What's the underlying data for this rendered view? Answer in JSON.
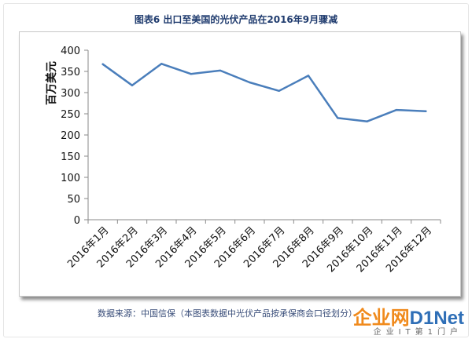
{
  "page": {
    "title": "图表6  出口至美国的光伏产品在2016年9月骤减"
  },
  "source": {
    "text": "数据来源：中国信保（本图表数据中光伏产品按承保商会口径划分）"
  },
  "watermark": {
    "part1": "企业网",
    "part2": "D1Net",
    "sub": "企业IT第1门户"
  },
  "chart_data": {
    "type": "line",
    "title": "图表6  出口至美国的光伏产品在2016年9月骤减",
    "ylabel": "百万美元",
    "xlabel": "",
    "categories": [
      "2016年1月",
      "2016年2月",
      "2016年3月",
      "2016年4月",
      "2016年5月",
      "2016年6月",
      "2016年7月",
      "2016年8月",
      "2016年9月",
      "2016年10月",
      "2016年11月",
      "2016年12月"
    ],
    "values": [
      367,
      317,
      368,
      344,
      352,
      324,
      304,
      340,
      240,
      232,
      259,
      256
    ],
    "ylim": [
      0,
      400
    ],
    "yticks": [
      0,
      50,
      100,
      150,
      200,
      250,
      300,
      350,
      400
    ],
    "grid": false,
    "legend": "none",
    "line_color": "#4a7ebb"
  }
}
